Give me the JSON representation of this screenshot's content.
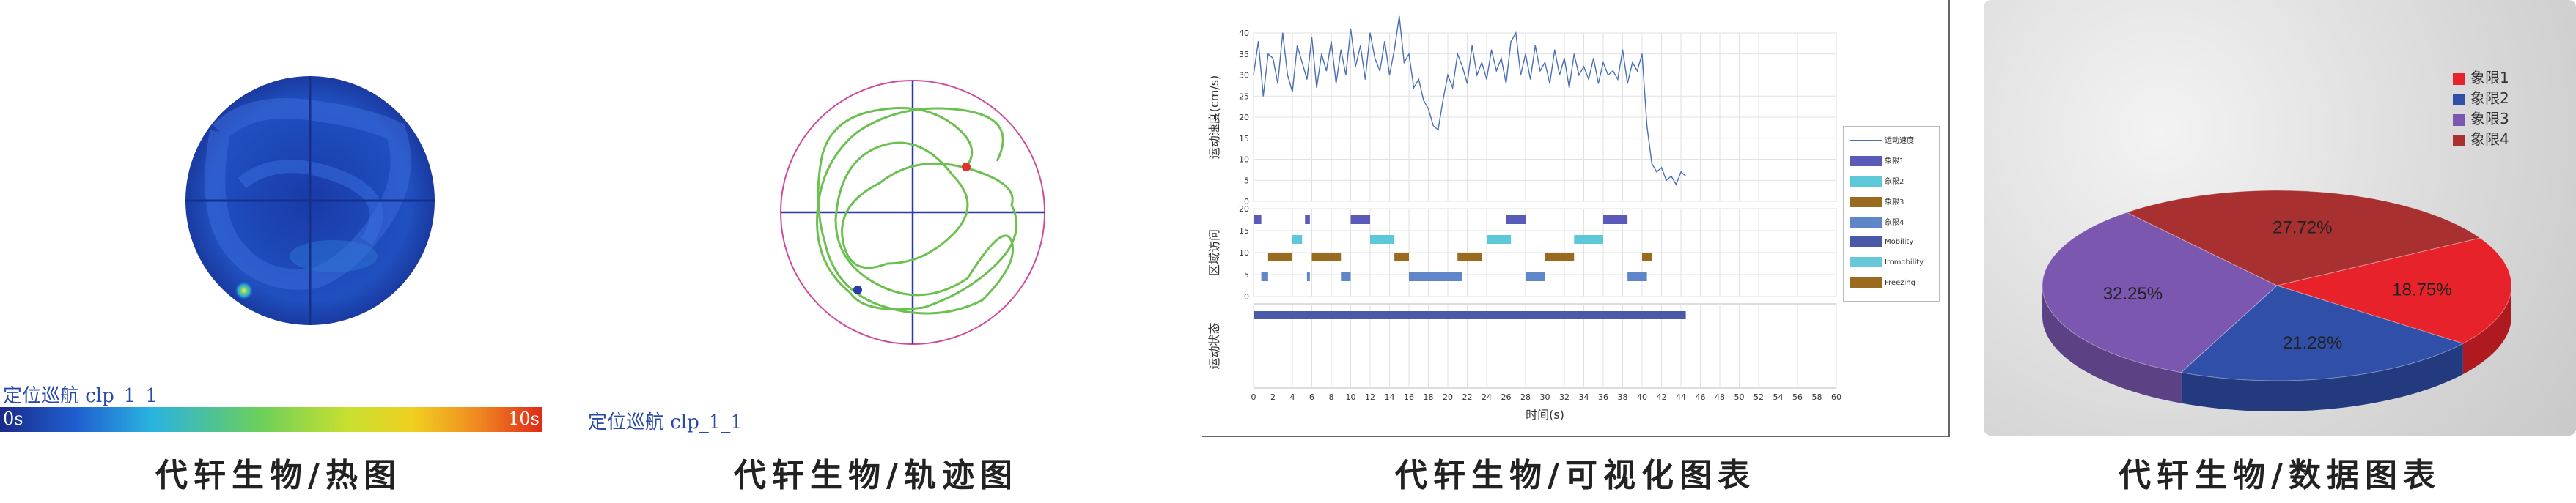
{
  "heatmap": {
    "label": "定位巡航 clp_1_1",
    "scale_min": "0s",
    "scale_max": "10s",
    "caption": "代轩生物/热图"
  },
  "trajectory": {
    "label": "定位巡航 clp_1_1",
    "caption": "代轩生物/轨迹图"
  },
  "visualization": {
    "caption": "代轩生物/可视化图表",
    "speed_axis_label": "运动速度(cm/s)",
    "zone_axis_label": "区域访问",
    "state_axis_label": "运动状态",
    "time_axis_label": "时间(s)",
    "legend": [
      {
        "label": "运动速度",
        "color": "#4a6fb5"
      },
      {
        "label": "象限1",
        "color": "#5a5ab8"
      },
      {
        "label": "象限2",
        "color": "#5cc8d8"
      },
      {
        "label": "象限3",
        "color": "#9a6a1e"
      },
      {
        "label": "象限4",
        "color": "#5f86c8"
      },
      {
        "label": "Mobility",
        "color": "#4a5aa8"
      },
      {
        "label": "Immobility",
        "color": "#66c8d8"
      },
      {
        "label": "Freezing",
        "color": "#9a6a1e"
      }
    ],
    "chart_data": {
      "type": "line",
      "x_ticks": [
        0,
        2,
        4,
        6,
        8,
        10,
        12,
        14,
        16,
        18,
        20,
        22,
        24,
        26,
        28,
        30,
        32,
        34,
        36,
        38,
        40,
        42,
        44,
        46,
        48,
        50,
        52,
        54,
        56,
        58,
        60
      ],
      "speed_ticks": [
        0,
        5,
        10,
        15,
        20,
        25,
        30,
        35,
        40
      ],
      "zone_ticks": [
        0,
        5,
        10,
        15,
        20
      ],
      "xlim": [
        0,
        60
      ],
      "ylim": [
        0,
        40
      ],
      "speed_series": {
        "name": "运动速度",
        "x": [
          0,
          0.5,
          1,
          1.5,
          2,
          2.5,
          3,
          3.5,
          4,
          4.5,
          5,
          5.5,
          6,
          6.5,
          7,
          7.5,
          8,
          8.5,
          9,
          9.5,
          10,
          10.5,
          11,
          11.5,
          12,
          12.5,
          13,
          13.5,
          14,
          14.5,
          15,
          15.5,
          16,
          16.5,
          17,
          17.5,
          18,
          18.5,
          19,
          19.5,
          20,
          20.5,
          21,
          21.5,
          22,
          22.5,
          23,
          23.5,
          24,
          24.5,
          25,
          25.5,
          26,
          26.5,
          27,
          27.5,
          28,
          28.5,
          29,
          29.5,
          30,
          30.5,
          31,
          31.5,
          32,
          32.5,
          33,
          33.5,
          34,
          34.5,
          35,
          35.5,
          36,
          36.5,
          37,
          37.5,
          38,
          38.5,
          39,
          39.5,
          40,
          40.5,
          41,
          41.5,
          42,
          42.5,
          43,
          43.5,
          44,
          44.5
        ],
        "y": [
          30,
          38,
          25,
          35,
          34,
          28,
          40,
          30,
          26,
          37,
          33,
          29,
          39,
          27,
          35,
          31,
          38,
          28,
          36,
          30,
          41,
          32,
          37,
          29,
          40,
          34,
          31,
          38,
          30,
          36,
          44,
          33,
          35,
          27,
          29,
          24,
          22,
          18,
          17,
          24,
          30,
          27,
          35,
          32,
          28,
          37,
          30,
          33,
          29,
          36,
          31,
          34,
          28,
          38,
          40,
          30,
          35,
          29,
          37,
          31,
          33,
          28,
          36,
          30,
          34,
          27,
          35,
          30,
          32,
          29,
          34,
          28,
          33,
          30,
          31,
          29,
          36,
          28,
          33,
          31,
          35,
          18,
          9,
          7,
          8,
          5,
          6,
          4,
          7,
          6
        ],
        "color": "#4a6fb5"
      },
      "zone_rows": [
        {
          "name": "象限1",
          "y": 17.5,
          "color": "#5a5ab8",
          "segments": [
            [
              0,
              0.8
            ],
            [
              5.3,
              5.8
            ],
            [
              10,
              12
            ],
            [
              26,
              28
            ],
            [
              36,
              38.5
            ]
          ]
        },
        {
          "name": "象限2",
          "y": 13,
          "color": "#5cc8d8",
          "segments": [
            [
              4,
              5
            ],
            [
              12,
              14.5
            ],
            [
              24,
              26.5
            ],
            [
              33,
              36
            ]
          ]
        },
        {
          "name": "象限3",
          "y": 9,
          "color": "#9a6a1e",
          "segments": [
            [
              1.5,
              4
            ],
            [
              6,
              9
            ],
            [
              14.5,
              16
            ],
            [
              21,
              23.5
            ],
            [
              30,
              33
            ],
            [
              40,
              41
            ]
          ]
        },
        {
          "name": "象限4",
          "y": 4.5,
          "color": "#5f86c8",
          "segments": [
            [
              0.8,
              1.5
            ],
            [
              5.5,
              5.8
            ],
            [
              9,
              10
            ],
            [
              16,
              21.5
            ],
            [
              28,
              30
            ],
            [
              38.5,
              40.5
            ]
          ]
        }
      ],
      "state_series": {
        "name": "Mobility",
        "start": 0,
        "end": 44.5,
        "color": "#4a5aa8"
      }
    }
  },
  "pie": {
    "caption": "代轩生物/数据图表",
    "chart_data": {
      "type": "pie",
      "slices": [
        {
          "label": "象限1",
          "value": 18.75,
          "text": "18.75%",
          "color": "#e8222a"
        },
        {
          "label": "象限2",
          "value": 21.28,
          "text": "21.28%",
          "color": "#2f4fa8"
        },
        {
          "label": "象限3",
          "value": 32.25,
          "text": "32.25%",
          "color": "#7b57b0"
        },
        {
          "label": "象限4",
          "value": 27.72,
          "text": "27.72%",
          "color": "#a83030"
        }
      ]
    }
  }
}
